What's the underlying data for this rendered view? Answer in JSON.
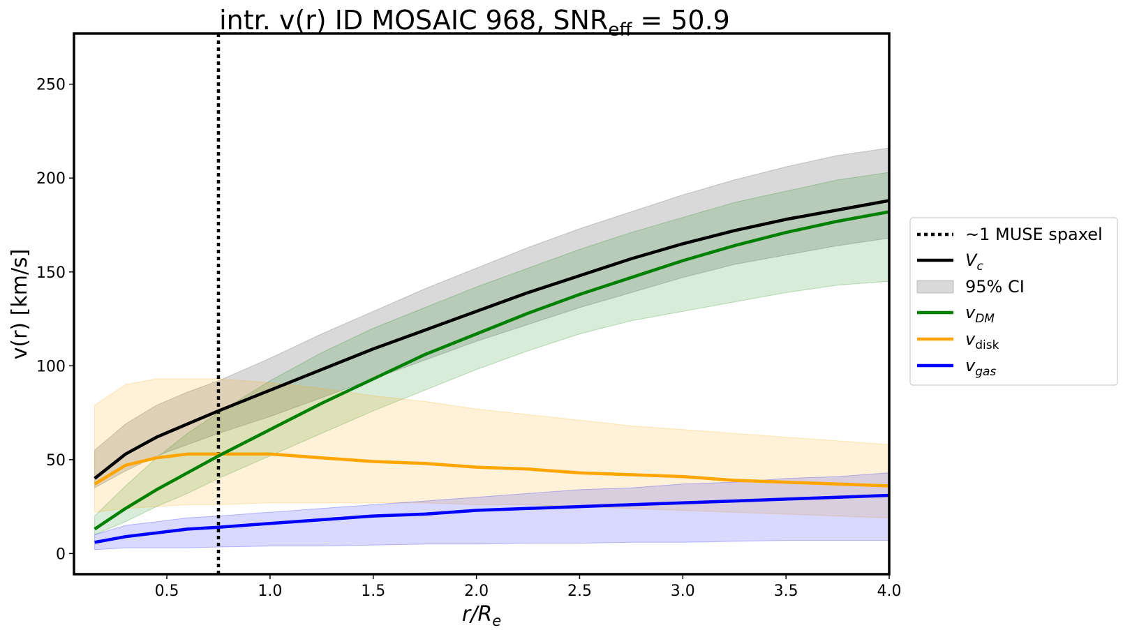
{
  "chart_data": {
    "type": "line",
    "title_main": "intr. v(r) ID MOSAIC 968, SNR",
    "title_sub": "eff",
    "title_value": " = 50.9",
    "xlabel": "r/R",
    "xlabel_sub": "e",
    "ylabel": "v(r) [km/s]",
    "xlim": [
      0.05,
      4.0
    ],
    "ylim": [
      -11,
      277
    ],
    "xticks": [
      0.5,
      1.0,
      1.5,
      2.0,
      2.5,
      3.0,
      3.5,
      4.0
    ],
    "xtick_labels": [
      "0.5",
      "1.0",
      "1.5",
      "2.0",
      "2.5",
      "3.0",
      "3.5",
      "4.0"
    ],
    "yticks": [
      0,
      50,
      100,
      150,
      200,
      250
    ],
    "ytick_labels": [
      "0",
      "50",
      "100",
      "150",
      "200",
      "250"
    ],
    "vline": {
      "x": 0.75,
      "label": "~1 MUSE spaxel"
    },
    "x": [
      0.15,
      0.3,
      0.45,
      0.6,
      0.75,
      1.0,
      1.25,
      1.5,
      1.75,
      2.0,
      2.25,
      2.5,
      2.75,
      3.0,
      3.25,
      3.5,
      3.75,
      4.0
    ],
    "series": [
      {
        "name": "V_c",
        "color": "#000000",
        "band_color": "#808080",
        "band_opacity": 0.3,
        "values": [
          40,
          53,
          62,
          69,
          76,
          87,
          98,
          109,
          119,
          129,
          139,
          148,
          157,
          165,
          172,
          178,
          183,
          188
        ],
        "lower": [
          35,
          44,
          52,
          58,
          64,
          73,
          83,
          93,
          103,
          113,
          122,
          131,
          139,
          147,
          154,
          159,
          164,
          168
        ],
        "upper": [
          55,
          69,
          79,
          86,
          92,
          104,
          117,
          129,
          141,
          152,
          163,
          173,
          182,
          191,
          199,
          206,
          212,
          216
        ]
      },
      {
        "name": "v_DM",
        "color": "#008000",
        "band_color": "#008000",
        "band_opacity": 0.15,
        "values": [
          13,
          24,
          34,
          43,
          52,
          66,
          80,
          93,
          106,
          117,
          128,
          138,
          147,
          156,
          164,
          171,
          177,
          182
        ],
        "lower": [
          10,
          17,
          25,
          32,
          40,
          52,
          64,
          76,
          87,
          98,
          108,
          117,
          124,
          129,
          134,
          139,
          143,
          145
        ],
        "upper": [
          20,
          36,
          51,
          64,
          75,
          92,
          107,
          120,
          131,
          142,
          152,
          162,
          171,
          179,
          187,
          193,
          199,
          203
        ]
      },
      {
        "name": "v_disk",
        "color": "#FFA500",
        "band_color": "#FFA500",
        "band_opacity": 0.15,
        "values": [
          37,
          47,
          51,
          53,
          53,
          53,
          51,
          49,
          48,
          46,
          45,
          43,
          42,
          41,
          39,
          38,
          37,
          36
        ],
        "lower": [
          22,
          24,
          25,
          26,
          26,
          27,
          27,
          27,
          27,
          26,
          26,
          25,
          24,
          23,
          22,
          21,
          20,
          19
        ],
        "upper": [
          79,
          90,
          93,
          93,
          93,
          91,
          88,
          84,
          81,
          77,
          74,
          71,
          68,
          66,
          64,
          62,
          60,
          58
        ]
      },
      {
        "name": "v_gas",
        "color": "#0000FF",
        "band_color": "#0000FF",
        "band_opacity": 0.15,
        "values": [
          6,
          9,
          11,
          13,
          14,
          16,
          18,
          20,
          21,
          23,
          24,
          25,
          26,
          27,
          28,
          29,
          30,
          31
        ],
        "lower": [
          2,
          3,
          3,
          3,
          3.5,
          4,
          4,
          4.5,
          5,
          5,
          5.5,
          5.5,
          6,
          6,
          6.5,
          7,
          7,
          7
        ],
        "upper": [
          10,
          15,
          17,
          19,
          20,
          22,
          24,
          26,
          28,
          30,
          32,
          34,
          35,
          37,
          38,
          40,
          41,
          43
        ]
      }
    ],
    "legend": {
      "placement": "right-outside",
      "entries": [
        {
          "key": "vline",
          "label": "~1 MUSE spaxel",
          "sub": ""
        },
        {
          "key": "vc",
          "label": "V",
          "sub": "c"
        },
        {
          "key": "ci",
          "label": "95% CI",
          "sub": ""
        },
        {
          "key": "dm",
          "label": "v",
          "sub": "DM"
        },
        {
          "key": "disk",
          "label": "v",
          "sub": "disk"
        },
        {
          "key": "gas",
          "label": "v",
          "sub": "gas"
        }
      ]
    }
  }
}
